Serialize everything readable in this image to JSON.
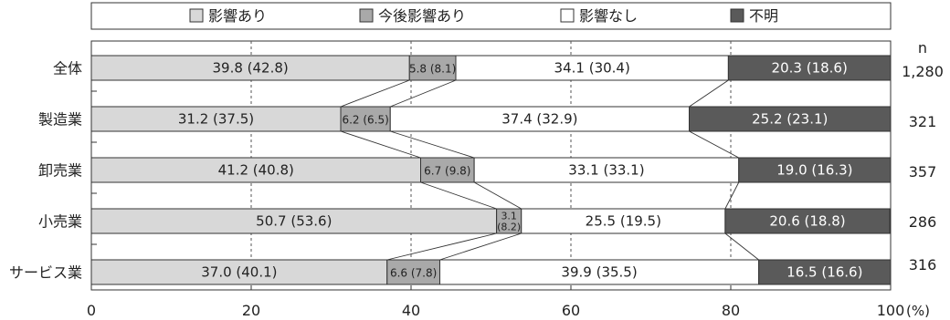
{
  "chart_data": {
    "type": "bar",
    "orientation": "horizontal",
    "stacked": true,
    "xlim": [
      0,
      100
    ],
    "x_ticks": [
      "0",
      "20",
      "40",
      "60",
      "80",
      "100"
    ],
    "x_unit": "(%)",
    "n_header": "n",
    "grid": "dashed vertical lines at 20, 40, 60, 80",
    "legend_position": "top",
    "categories": [
      "全体",
      "製造業",
      "卸売業",
      "小売業",
      "サービス業"
    ],
    "n_values": [
      "1,280",
      "321",
      "357",
      "286",
      "316"
    ],
    "series": [
      {
        "name": "影響あり",
        "color": "#d8d8d8",
        "label_color": "#222222",
        "values": [
          39.8,
          31.2,
          41.2,
          50.7,
          37.0
        ],
        "prev_values": [
          42.8,
          37.5,
          40.8,
          53.6,
          40.1
        ],
        "labels": [
          "39.8 (42.8)",
          "31.2 (37.5)",
          "41.2 (40.8)",
          "50.7 (53.6)",
          "37.0 (40.1)"
        ]
      },
      {
        "name": "今後影響あり",
        "color": "#a9a9a9",
        "label_color": "#222222",
        "values": [
          5.8,
          6.2,
          6.7,
          3.1,
          6.6
        ],
        "prev_values": [
          8.1,
          6.5,
          9.8,
          8.2,
          7.8
        ],
        "labels": [
          "5.8 (8.1)",
          "6.2 (6.5)",
          "6.7 (9.8)",
          "3.1 (8.2)",
          "6.6 (7.8)"
        ]
      },
      {
        "name": "影響なし",
        "color": "#ffffff",
        "label_color": "#222222",
        "values": [
          34.1,
          37.4,
          33.1,
          25.5,
          39.9
        ],
        "prev_values": [
          30.4,
          32.9,
          33.1,
          19.5,
          35.5
        ],
        "labels": [
          "34.1 (30.4)",
          "37.4 (32.9)",
          "33.1 (33.1)",
          "25.5 (19.5)",
          "39.9 (35.5)"
        ]
      },
      {
        "name": "不明",
        "color": "#5a5a5a",
        "label_color": "#ffffff",
        "values": [
          20.3,
          25.2,
          19.0,
          20.6,
          16.5
        ],
        "prev_values": [
          18.6,
          23.1,
          16.3,
          18.8,
          16.6
        ],
        "labels": [
          "20.3 (18.6)",
          "25.2 (23.1)",
          "19.0 (16.3)",
          "20.6 (18.8)",
          "16.5 (16.6)"
        ]
      }
    ]
  }
}
